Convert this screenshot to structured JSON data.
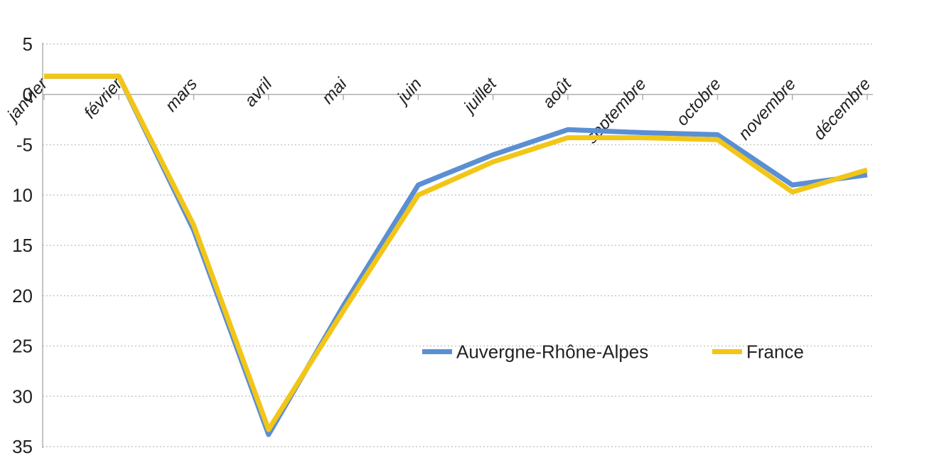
{
  "chart_data": {
    "type": "line",
    "title": "",
    "xlabel": "",
    "ylabel": "",
    "categories": [
      "janvier",
      "février",
      "mars",
      "avril",
      "mai",
      "juin",
      "juillet",
      "août",
      "septembre",
      "octobre",
      "novembre",
      "décembre"
    ],
    "ylim": [
      -35,
      5
    ],
    "yticks": [
      5,
      0,
      -5,
      -10,
      -15,
      -20,
      -25,
      -30,
      -35
    ],
    "ytick_labels": [
      "5",
      "0",
      "-5",
      "10",
      "15",
      "20",
      "25",
      "30",
      "35"
    ],
    "grid": true,
    "legend_position": "center-right",
    "series": [
      {
        "name": "Auvergne-Rhône-Alpes",
        "color": "#5b8fd4",
        "values": [
          1.8,
          1.8,
          -13.5,
          -33.8,
          -21.0,
          -9.0,
          -6.0,
          -3.5,
          -3.8,
          -4.0,
          -9.0,
          -8.0
        ]
      },
      {
        "name": "France",
        "color": "#f2c618",
        "values": [
          1.8,
          1.8,
          -13.0,
          -33.3,
          -21.5,
          -10.0,
          -6.7,
          -4.3,
          -4.3,
          -4.5,
          -9.7,
          -7.5
        ]
      }
    ]
  }
}
